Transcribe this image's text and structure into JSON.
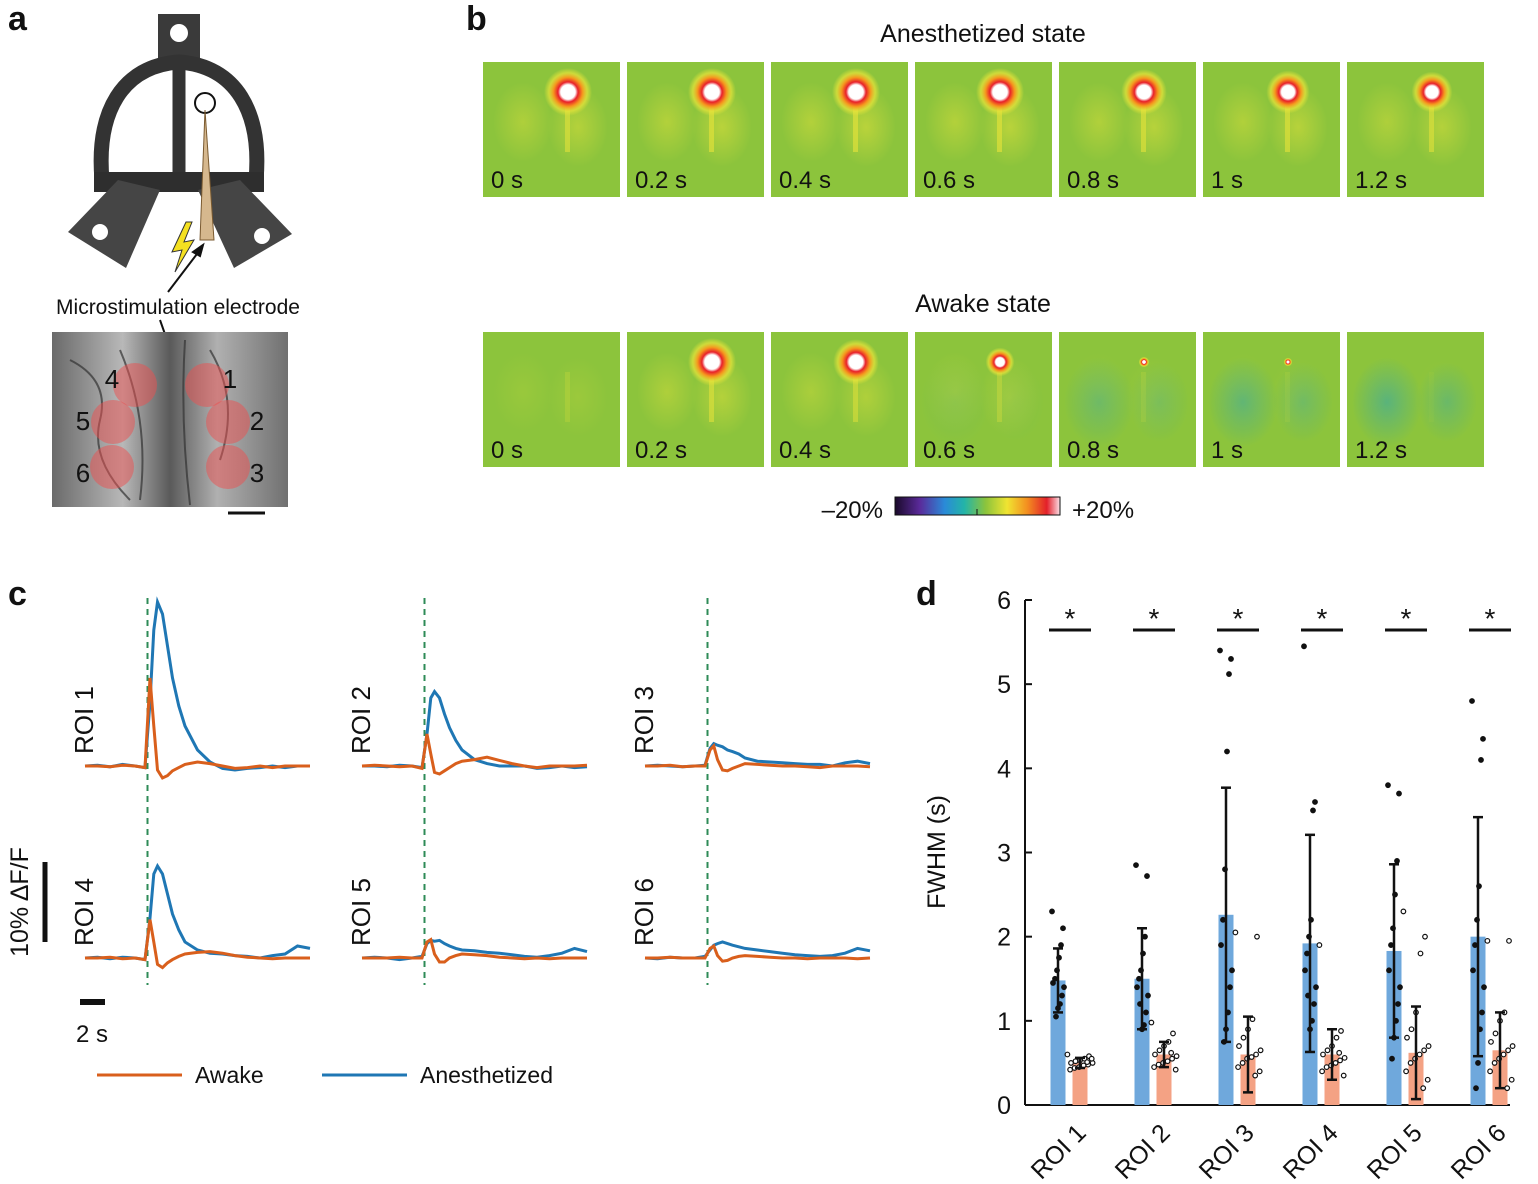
{
  "panel_labels": [
    "a",
    "b",
    "c",
    "d"
  ],
  "panel_a": {
    "electrode_label": "Microstimulation electrode",
    "roi_numbers": [
      "1",
      "2",
      "3",
      "4",
      "5",
      "6"
    ]
  },
  "panel_b": {
    "rows": [
      {
        "title": "Anesthetized state",
        "frame_labels": [
          "0 s",
          "0.2 s",
          "0.4 s",
          "0.6 s",
          "0.8 s",
          "1 s",
          "1.2 s"
        ]
      },
      {
        "title": "Awake state",
        "frame_labels": [
          "0 s",
          "0.2 s",
          "0.4 s",
          "0.6 s",
          "0.8 s",
          "1 s",
          "1.2 s"
        ]
      }
    ],
    "colorbar": {
      "min_label": "–20%",
      "max_label": "+20%"
    }
  },
  "chart_data": [
    {
      "type": "line",
      "panel_titles": [
        "ROI 1",
        "ROI 2",
        "ROI 3",
        "ROI 4",
        "ROI 5",
        "ROI 6"
      ],
      "x": [
        0,
        1,
        2,
        3,
        4,
        4.8,
        5.2,
        5.5,
        5.8,
        6.2,
        6.6,
        7,
        7.5,
        8,
        9,
        10,
        11,
        12,
        13,
        14,
        15,
        16,
        17,
        18
      ],
      "stimulus_onset": 5,
      "scalebar_y": {
        "value": 10,
        "label": "10% ΔF/F"
      },
      "scalebar_x": {
        "value": 2,
        "label": "2 s"
      },
      "series": [
        {
          "name": "Awake",
          "color": "#d95f1c",
          "values": [
            [
              0,
              0,
              -0.1,
              0.1,
              0,
              -0.2,
              11,
              5,
              -0.5,
              -1.5,
              -1.2,
              -0.6,
              -0.2,
              0.2,
              0.5,
              0.3,
              0,
              -0.3,
              -0.2,
              0,
              -0.2,
              0,
              0,
              0
            ],
            [
              0,
              0.1,
              0,
              -0.1,
              0,
              -0.3,
              4,
              1.5,
              -0.8,
              -1,
              -0.6,
              -0.2,
              0.3,
              0.6,
              0.8,
              1.1,
              0.7,
              0.3,
              0,
              -0.2,
              0,
              0,
              0,
              0.1
            ],
            [
              0,
              0,
              0.1,
              -0.1,
              0,
              0,
              2,
              2.5,
              0.8,
              -0.5,
              -0.6,
              -0.3,
              0,
              0.3,
              0.2,
              0.1,
              0,
              0,
              -0.1,
              -0.2,
              0,
              0,
              0,
              -0.1
            ],
            [
              0,
              0,
              0.1,
              -0.1,
              0,
              -0.2,
              4.8,
              2,
              -0.8,
              -1.2,
              -0.6,
              -0.2,
              0.2,
              0.5,
              0.7,
              0.8,
              0.6,
              0.3,
              0.1,
              0,
              -0.1,
              0,
              0,
              0
            ],
            [
              0,
              0,
              0,
              0.1,
              0,
              0,
              2,
              2.3,
              0.5,
              -0.5,
              -0.5,
              0,
              0.3,
              0.5,
              0.4,
              0.3,
              0.1,
              0,
              -0.1,
              0,
              -0.1,
              0,
              0,
              0
            ],
            [
              0,
              0,
              0.1,
              0,
              0,
              0,
              1.2,
              1.5,
              0.3,
              -0.4,
              -0.3,
              0,
              0.2,
              0.3,
              0.2,
              0.1,
              0,
              0,
              -0.1,
              0,
              0,
              0,
              -0.1,
              0
            ]
          ]
        },
        {
          "name": "Anesthetized",
          "color": "#1f77b4",
          "values": [
            [
              0,
              0.1,
              -0.1,
              0.2,
              0,
              -0.2,
              8,
              17,
              20.5,
              19,
              15,
              11,
              7.5,
              5,
              2,
              0.5,
              -0.3,
              -0.5,
              -0.3,
              -0.2,
              0,
              -0.2,
              0,
              0
            ],
            [
              0,
              0,
              -0.1,
              0.1,
              0,
              -0.2,
              4,
              8.5,
              9.3,
              8.5,
              6.5,
              4.8,
              3.2,
              2,
              0.8,
              0.3,
              0,
              0,
              0,
              -0.3,
              -0.2,
              0,
              -0.2,
              -0.1
            ],
            [
              0,
              0.1,
              0,
              -0.1,
              0,
              0.1,
              2.2,
              2.8,
              2.6,
              2.4,
              2,
              1.8,
              1.5,
              1,
              0.6,
              0.5,
              0.4,
              0.3,
              0.2,
              0.2,
              0,
              0.4,
              0.6,
              0.3
            ],
            [
              0,
              0.1,
              -0.1,
              0.1,
              0,
              -0.2,
              5,
              10.5,
              11.5,
              10.5,
              8,
              5.5,
              3.5,
              2,
              1,
              0.6,
              0.5,
              0.3,
              0.2,
              0,
              0.3,
              0.5,
              1.5,
              1.2
            ],
            [
              0,
              0.1,
              0,
              -0.2,
              0,
              0.2,
              1.8,
              2.2,
              2.1,
              2.2,
              1.8,
              1.5,
              1.2,
              1,
              0.9,
              0.7,
              0.6,
              0.4,
              0.2,
              0.1,
              0.3,
              0.6,
              1.2,
              0.8
            ],
            [
              0,
              -0.1,
              0.1,
              0,
              0,
              0.2,
              1,
              1.6,
              1.8,
              2,
              1.8,
              1.6,
              1.4,
              1.2,
              1,
              0.8,
              0.6,
              0.4,
              0.3,
              0.2,
              0.3,
              0.6,
              1.2,
              0.9
            ]
          ]
        }
      ]
    },
    {
      "type": "bar",
      "ylabel": "FWHM (s)",
      "categories": [
        "ROI 1",
        "ROI 2",
        "ROI 3",
        "ROI 4",
        "ROI 5",
        "ROI 6"
      ],
      "ylim": [
        0,
        6
      ],
      "yticks": [
        0,
        1,
        2,
        3,
        4,
        5,
        6
      ],
      "significance": [
        "*",
        "*",
        "*",
        "*",
        "*",
        "*"
      ],
      "series": [
        {
          "color": "#6fa8dc",
          "values": [
            1.48,
            1.5,
            2.26,
            1.92,
            1.83,
            2.0
          ],
          "errors": [
            0.38,
            0.6,
            1.51,
            1.29,
            1.03,
            1.42
          ],
          "points": [
            [
              2.3,
              2.1,
              1.9,
              1.75,
              1.6,
              1.5,
              1.45,
              1.4,
              1.3,
              1.2,
              1.15,
              1.05
            ],
            [
              2.85,
              2.72,
              2.0,
              1.8,
              1.6,
              1.5,
              1.4,
              1.3,
              1.1,
              0.95,
              0.9,
              1.2
            ],
            [
              5.4,
              5.3,
              5.12,
              4.2,
              2.8,
              2.2,
              1.9,
              1.6,
              1.4,
              1.1,
              0.9,
              0.75
            ],
            [
              5.45,
              3.6,
              3.5,
              2.2,
              2.0,
              1.8,
              1.6,
              1.4,
              1.2,
              1.0,
              0.9,
              1.3
            ],
            [
              3.8,
              3.7,
              2.9,
              2.5,
              2.1,
              1.9,
              1.6,
              1.4,
              1.2,
              1.0,
              0.8,
              0.55
            ],
            [
              4.8,
              4.35,
              4.1,
              2.6,
              2.2,
              1.9,
              1.6,
              1.4,
              1.1,
              0.9,
              0.5,
              0.2
            ]
          ]
        },
        {
          "color": "#f4a284",
          "values": [
            0.5,
            0.6,
            0.6,
            0.6,
            0.62,
            0.65
          ],
          "errors": [
            0.06,
            0.15,
            0.45,
            0.3,
            0.55,
            0.45
          ],
          "points": [
            [
              0.6,
              0.58,
              0.55,
              0.53,
              0.52,
              0.5,
              0.5,
              0.48,
              0.47,
              0.45,
              0.44,
              0.42,
              0.55,
              0.51
            ],
            [
              0.98,
              0.85,
              0.75,
              0.7,
              0.65,
              0.6,
              0.58,
              0.55,
              0.52,
              0.5,
              0.48,
              0.45,
              0.42,
              0.62
            ],
            [
              2.05,
              2.0,
              1.02,
              0.9,
              0.8,
              0.7,
              0.65,
              0.6,
              0.57,
              0.55,
              0.5,
              0.45,
              0.4,
              0.35
            ],
            [
              1.9,
              0.88,
              0.8,
              0.7,
              0.65,
              0.6,
              0.56,
              0.53,
              0.5,
              0.47,
              0.45,
              0.4,
              0.35,
              0.62
            ],
            [
              2.3,
              2.0,
              1.8,
              1.1,
              0.9,
              0.8,
              0.7,
              0.65,
              0.6,
              0.55,
              0.5,
              0.4,
              0.3,
              0.2
            ],
            [
              1.95,
              1.95,
              1.1,
              1.0,
              0.85,
              0.75,
              0.7,
              0.65,
              0.6,
              0.55,
              0.5,
              0.4,
              0.3,
              0.2
            ]
          ]
        }
      ]
    }
  ]
}
